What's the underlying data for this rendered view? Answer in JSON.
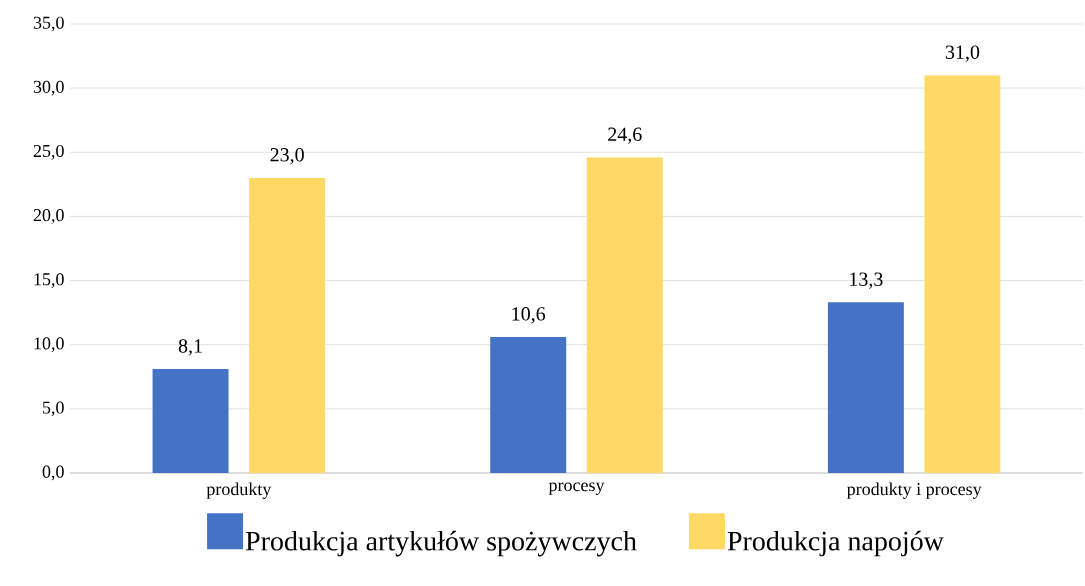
{
  "chart_data": {
    "type": "bar",
    "categories": [
      "produkty",
      "procesy",
      "produkty i procesy"
    ],
    "series": [
      {
        "name": "Produkcja artykułów spożywczych",
        "color": "#4472c4",
        "values": [
          8.1,
          10.6,
          13.3
        ],
        "value_labels": [
          "8,1",
          "10,6",
          "13,3"
        ]
      },
      {
        "name": "Produkcja napojów",
        "color": "#ffd966",
        "values": [
          23.0,
          24.6,
          31.0
        ],
        "value_labels": [
          "23,0",
          "24,6",
          "31,0"
        ]
      }
    ],
    "ylim": [
      0,
      35
    ],
    "yticks": [
      {
        "value": 0,
        "label": "0,0"
      },
      {
        "value": 5,
        "label": "5,0"
      },
      {
        "value": 10,
        "label": "10,0"
      },
      {
        "value": 15,
        "label": "15,0"
      },
      {
        "value": 20,
        "label": "20,0"
      },
      {
        "value": 25,
        "label": "25,0"
      },
      {
        "value": 30,
        "label": "30,0"
      },
      {
        "value": 35,
        "label": "35,0"
      }
    ],
    "grid": "y",
    "legend": "bottom"
  }
}
